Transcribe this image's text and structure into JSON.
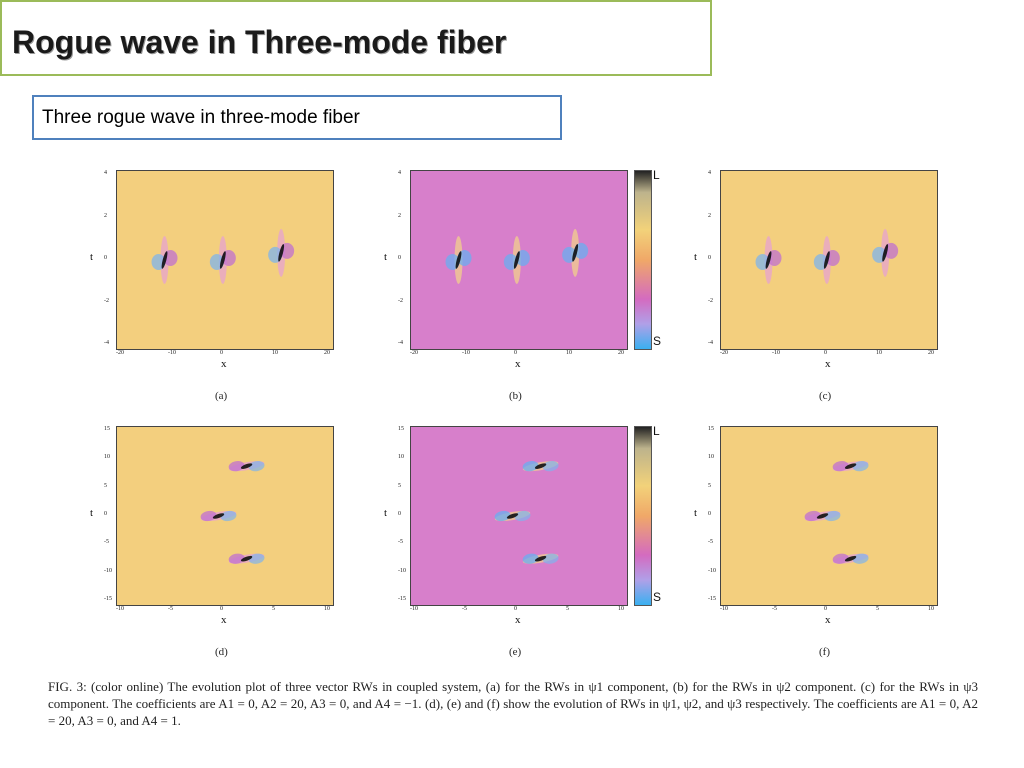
{
  "slide": {
    "title": "Rogue wave in Three-mode fiber",
    "subtitle": "Three rogue wave in three-mode fiber",
    "caption": "FIG. 3: (color online) The evolution plot of three vector RWs in coupled system, (a) for the RWs in ψ1 component, (b) for the RWs in ψ2 component. (c) for the RWs in ψ3 component. The coefficients are A1 = 0, A2 = 20, A3 = 0, and A4 = −1. (d), (e) and (f) show the evolution of RWs in ψ1, ψ2, and ψ3 respectively. The coefficients are A1 = 0, A2 = 20, A3 = 0, and A4 = 1."
  },
  "colors": {
    "title_border": "#9bbb59",
    "subtitle_border": "#4f81bd",
    "orange_bg": "#f3cf7e",
    "magenta_bg": "#d77fcb"
  },
  "figure": {
    "colorbar": {
      "top_label": "L",
      "bottom_label": "S"
    },
    "row1": {
      "xticks": [
        "-20",
        "-10",
        "0",
        "10",
        "20"
      ],
      "yticks": [
        "4",
        "2",
        "0",
        "-2",
        "-4"
      ],
      "panels": [
        {
          "label": "(a)",
          "xlabel": "x",
          "ylabel": "t",
          "bg": "orange"
        },
        {
          "label": "(b)",
          "xlabel": "x",
          "ylabel": "t",
          "bg": "magenta"
        },
        {
          "label": "(c)",
          "xlabel": "x",
          "ylabel": "t",
          "bg": "orange"
        }
      ]
    },
    "row2": {
      "xticks": [
        "-10",
        "-5",
        "0",
        "5",
        "10"
      ],
      "yticks": [
        "15",
        "10",
        "5",
        "0",
        "-5",
        "-10",
        "-15"
      ],
      "panels": [
        {
          "label": "(d)",
          "xlabel": "x",
          "ylabel": "t",
          "bg": "orange"
        },
        {
          "label": "(e)",
          "xlabel": "x",
          "ylabel": "t",
          "bg": "magenta"
        },
        {
          "label": "(f)",
          "xlabel": "x",
          "ylabel": "t",
          "bg": "orange"
        }
      ]
    }
  }
}
